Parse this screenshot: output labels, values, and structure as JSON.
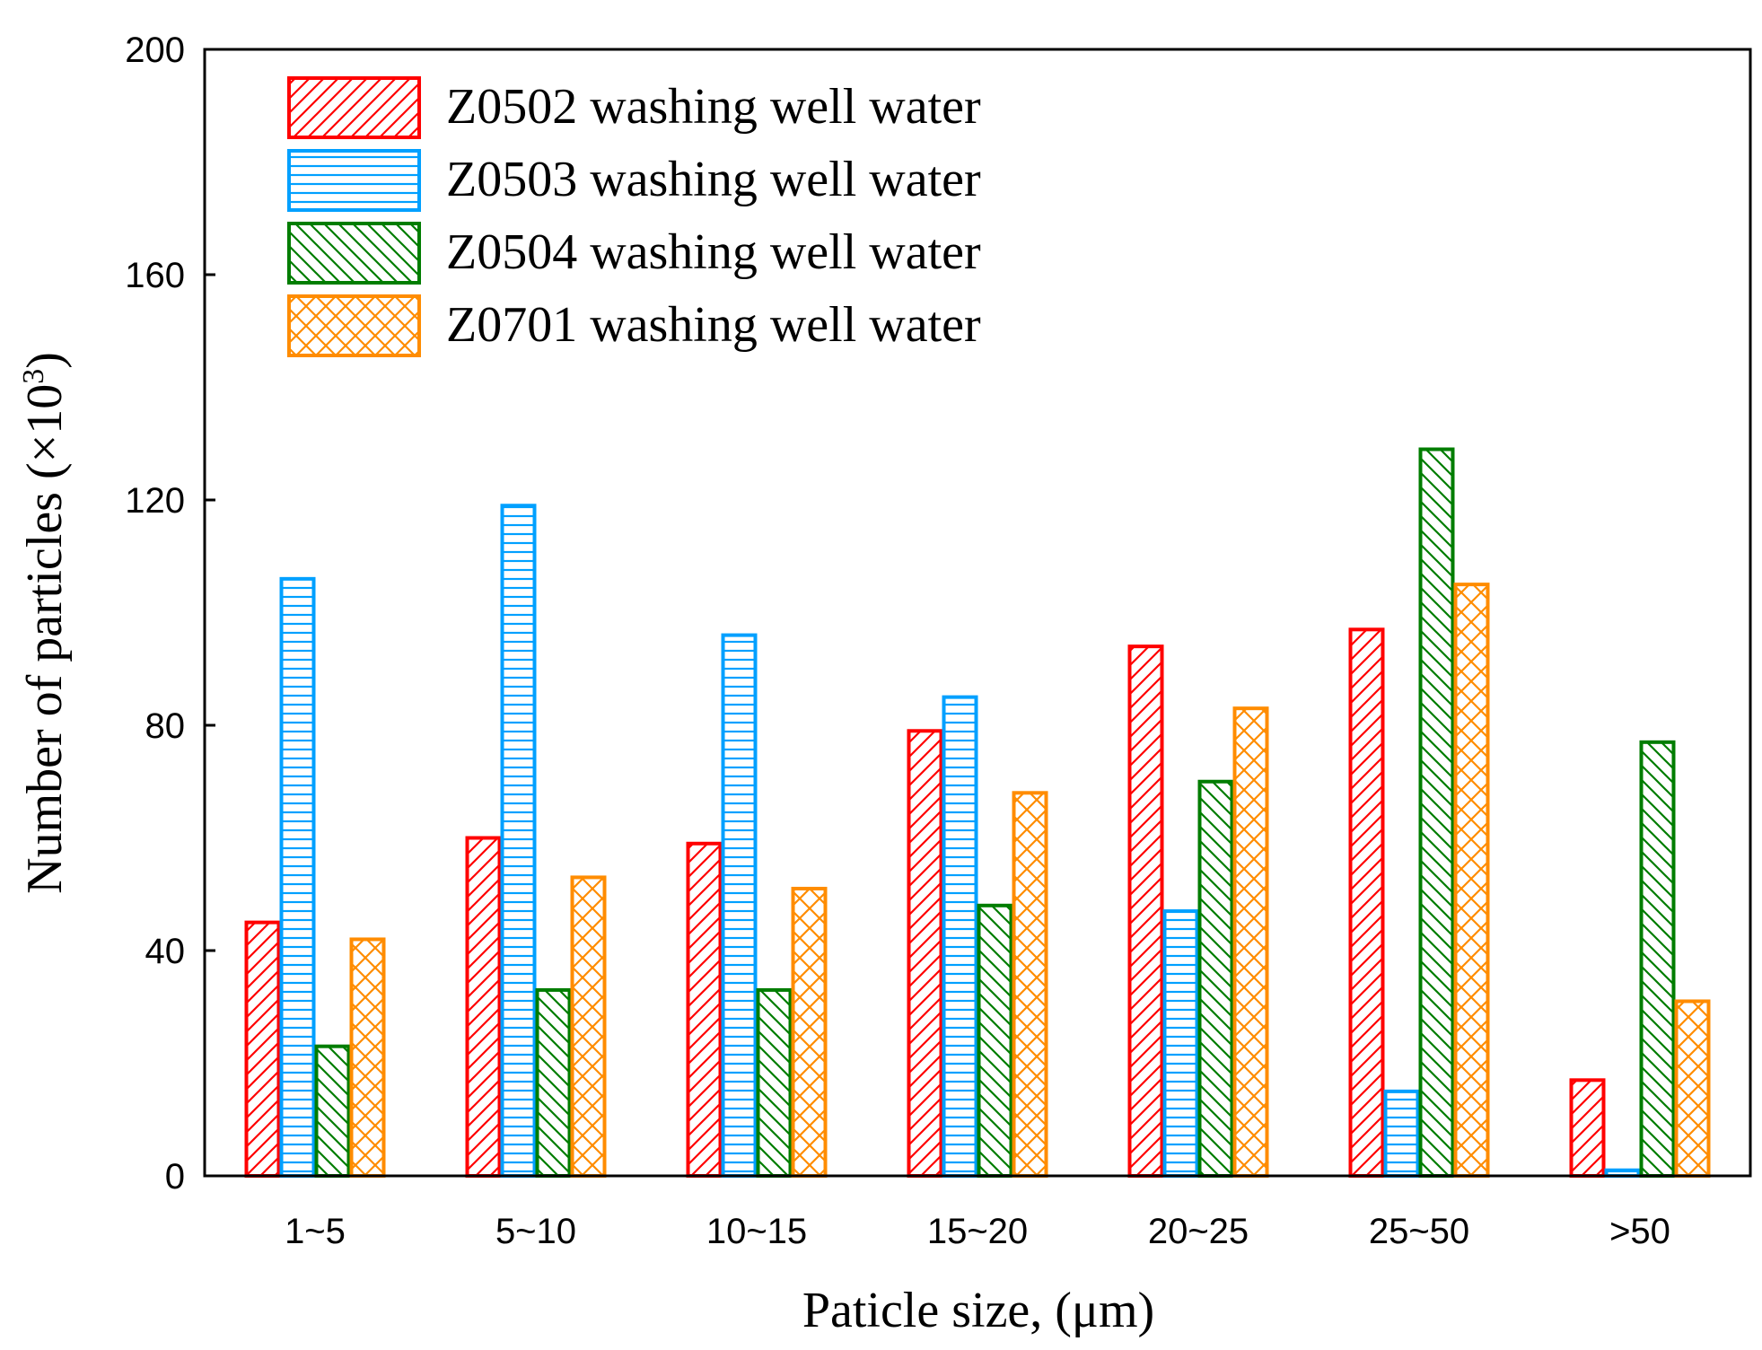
{
  "chart_data": {
    "type": "bar",
    "xlabel": "Paticle size, (μm)",
    "ylabel": "Number of particles (×10",
    "ylabel_sup": "3",
    "ylabel_close": ")",
    "ylim": [
      0,
      200
    ],
    "yticks": [
      0,
      40,
      80,
      120,
      160,
      200
    ],
    "categories": [
      "1~5",
      "5~10",
      "10~15",
      "15~20",
      "20~25",
      "25~50",
      ">50"
    ],
    "legend_position": "top-left",
    "grid": false,
    "series": [
      {
        "name": "Z0502 washing well water",
        "color": "#ff0000",
        "pattern": "diagonal-up",
        "values": [
          45,
          60,
          59,
          79,
          94,
          97,
          17
        ]
      },
      {
        "name": "Z0503 washing well water",
        "color": "#00a0ff",
        "pattern": "horizontal",
        "values": [
          106,
          119,
          96,
          85,
          47,
          15,
          1
        ]
      },
      {
        "name": "Z0504 washing well water",
        "color": "#007d00",
        "pattern": "diagonal-down",
        "values": [
          23,
          33,
          33,
          48,
          70,
          129,
          77
        ]
      },
      {
        "name": "Z0701 washing well water",
        "color": "#ff8c00",
        "pattern": "crosshatch",
        "values": [
          42,
          53,
          51,
          68,
          83,
          105,
          31
        ]
      }
    ]
  }
}
